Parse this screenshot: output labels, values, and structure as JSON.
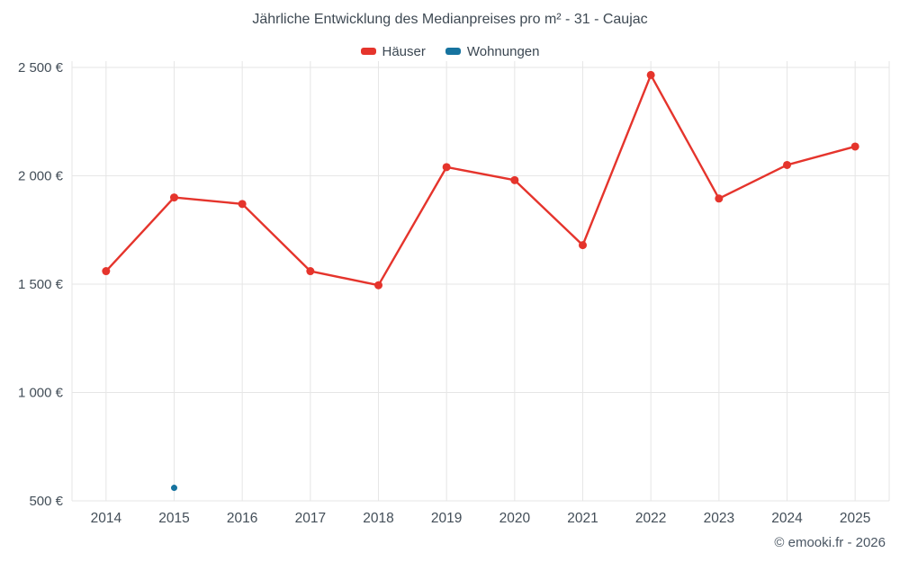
{
  "chart_data": {
    "type": "line",
    "title": "Jährliche Entwicklung des Medianpreises pro m² - 31 - Caujac",
    "categories": [
      "2014",
      "2015",
      "2016",
      "2017",
      "2018",
      "2019",
      "2020",
      "2021",
      "2022",
      "2023",
      "2024",
      "2025"
    ],
    "series": [
      {
        "name": "Häuser",
        "color": "#e5342c",
        "values": [
          1560,
          1900,
          1870,
          1560,
          1495,
          2040,
          1980,
          1680,
          2465,
          1895,
          2050,
          2135
        ]
      },
      {
        "name": "Wohnungen",
        "color": "#16739f",
        "values": [
          null,
          560,
          null,
          null,
          null,
          null,
          null,
          null,
          null,
          null,
          null,
          null
        ]
      }
    ],
    "ylim": [
      500,
      2500
    ],
    "yticks": [
      500,
      1000,
      1500,
      2000,
      2500
    ],
    "ytick_labels": [
      "500 €",
      "1 000 €",
      "1 500 €",
      "2 000 €",
      "2 500 €"
    ],
    "grid": true,
    "legend_position": "top"
  },
  "footer": {
    "text": "© emooki.fr - 2026"
  },
  "colors": {
    "hauser": "#e5342c",
    "wohnungen": "#16739f",
    "grid": "#e6e6e6",
    "axis_text": "#434e58",
    "title_text": "#3f4a54"
  }
}
